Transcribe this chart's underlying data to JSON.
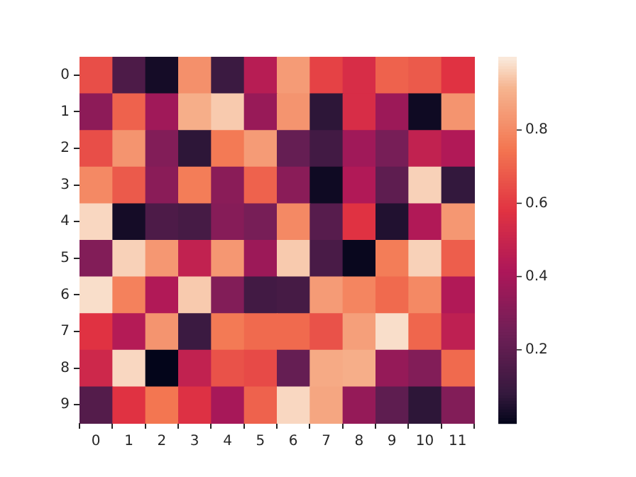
{
  "chart_data": {
    "type": "heatmap",
    "categories": [
      "0",
      "1",
      "2",
      "3",
      "4",
      "5",
      "6",
      "7",
      "8",
      "9",
      "10",
      "11"
    ],
    "y_categories": [
      "0",
      "1",
      "2",
      "3",
      "4",
      "5",
      "6",
      "7",
      "8",
      "9"
    ],
    "cells": [
      [
        0.65,
        0.15,
        0.03,
        0.82,
        0.1,
        0.45,
        0.85,
        0.62,
        0.55,
        0.7,
        0.68,
        0.58
      ],
      [
        0.33,
        0.7,
        0.38,
        0.9,
        0.95,
        0.36,
        0.83,
        0.07,
        0.55,
        0.37,
        0.02,
        0.83
      ],
      [
        0.65,
        0.83,
        0.3,
        0.07,
        0.76,
        0.85,
        0.22,
        0.12,
        0.38,
        0.27,
        0.48,
        0.43
      ],
      [
        0.8,
        0.68,
        0.32,
        0.77,
        0.32,
        0.7,
        0.32,
        0.02,
        0.43,
        0.2,
        0.96,
        0.08
      ],
      [
        0.97,
        0.03,
        0.15,
        0.13,
        0.31,
        0.27,
        0.8,
        0.18,
        0.58,
        0.05,
        0.43,
        0.84
      ],
      [
        0.3,
        0.96,
        0.84,
        0.48,
        0.84,
        0.37,
        0.95,
        0.14,
        0.01,
        0.77,
        0.96,
        0.69
      ],
      [
        0.98,
        0.78,
        0.43,
        0.95,
        0.3,
        0.12,
        0.13,
        0.85,
        0.79,
        0.72,
        0.8,
        0.43
      ],
      [
        0.58,
        0.44,
        0.83,
        0.1,
        0.76,
        0.72,
        0.72,
        0.66,
        0.86,
        0.98,
        0.71,
        0.47
      ],
      [
        0.52,
        0.97,
        0.0,
        0.48,
        0.66,
        0.64,
        0.22,
        0.89,
        0.9,
        0.35,
        0.3,
        0.72
      ],
      [
        0.17,
        0.58,
        0.75,
        0.57,
        0.4,
        0.7,
        0.97,
        0.88,
        0.35,
        0.2,
        0.07,
        0.3
      ]
    ],
    "clim": [
      0.0,
      1.0
    ],
    "cticks": [
      0.2,
      0.4,
      0.6,
      0.8
    ]
  }
}
